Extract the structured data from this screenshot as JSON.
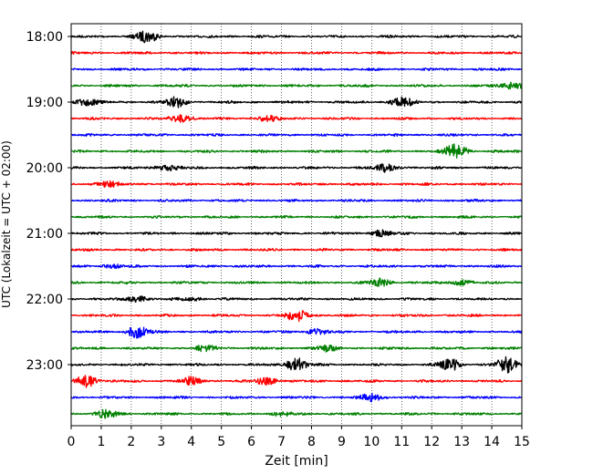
{
  "chart_data": {
    "type": "line",
    "title": "",
    "xlabel": "Zeit  [min]",
    "ylabel": "UTC (Lokalzeit = UTC + 02:00)",
    "xlim": [
      0,
      15
    ],
    "x_ticks": [
      "0",
      "1",
      "2",
      "3",
      "4",
      "5",
      "6",
      "7",
      "8",
      "9",
      "10",
      "11",
      "12",
      "13",
      "14",
      "15"
    ],
    "y_tick_labels": [
      "18:00",
      "19:00",
      "20:00",
      "21:00",
      "22:00",
      "23:00"
    ],
    "start_time": "18:00",
    "trace_interval_min": 15,
    "grid": "vertical-dotted",
    "colors": [
      "#000000",
      "#ff0000",
      "#0000ff",
      "#008000"
    ],
    "series": [
      {
        "start": "18:00",
        "color": "#000000",
        "bursts": [
          [
            2.5,
            6
          ]
        ]
      },
      {
        "start": "18:15",
        "color": "#ff0000",
        "bursts": []
      },
      {
        "start": "18:30",
        "color": "#0000ff",
        "bursts": []
      },
      {
        "start": "18:45",
        "color": "#008000",
        "bursts": [
          [
            14.7,
            4
          ]
        ]
      },
      {
        "start": "19:00",
        "color": "#000000",
        "bursts": [
          [
            0.5,
            4
          ],
          [
            3.5,
            5
          ],
          [
            11,
            5
          ]
        ]
      },
      {
        "start": "19:15",
        "color": "#ff0000",
        "bursts": [
          [
            3.7,
            4
          ],
          [
            6.5,
            3
          ]
        ]
      },
      {
        "start": "19:30",
        "color": "#0000ff",
        "bursts": []
      },
      {
        "start": "19:45",
        "color": "#008000",
        "bursts": [
          [
            12.8,
            8
          ]
        ]
      },
      {
        "start": "20:00",
        "color": "#000000",
        "bursts": [
          [
            3.2,
            3
          ],
          [
            10.5,
            4
          ]
        ]
      },
      {
        "start": "20:15",
        "color": "#ff0000",
        "bursts": [
          [
            1.2,
            3
          ]
        ]
      },
      {
        "start": "20:30",
        "color": "#0000ff",
        "bursts": []
      },
      {
        "start": "20:45",
        "color": "#008000",
        "bursts": []
      },
      {
        "start": "21:00",
        "color": "#000000",
        "bursts": [
          [
            10.3,
            3
          ]
        ]
      },
      {
        "start": "21:15",
        "color": "#ff0000",
        "bursts": []
      },
      {
        "start": "21:30",
        "color": "#0000ff",
        "bursts": [
          [
            1.4,
            2
          ]
        ]
      },
      {
        "start": "21:45",
        "color": "#008000",
        "bursts": [
          [
            10.3,
            4
          ],
          [
            13,
            3
          ]
        ]
      },
      {
        "start": "22:00",
        "color": "#000000",
        "bursts": [
          [
            2.2,
            3
          ],
          [
            4,
            2
          ]
        ]
      },
      {
        "start": "22:15",
        "color": "#ff0000",
        "bursts": [
          [
            7.5,
            7
          ]
        ]
      },
      {
        "start": "22:30",
        "color": "#0000ff",
        "bursts": [
          [
            2.2,
            6
          ],
          [
            8.2,
            3
          ]
        ]
      },
      {
        "start": "22:45",
        "color": "#008000",
        "bursts": [
          [
            4.5,
            3
          ],
          [
            8.5,
            3
          ]
        ]
      },
      {
        "start": "23:00",
        "color": "#000000",
        "bursts": [
          [
            7.5,
            7
          ],
          [
            14.5,
            8
          ],
          [
            12.6,
            6
          ]
        ]
      },
      {
        "start": "23:15",
        "color": "#ff0000",
        "bursts": [
          [
            0.5,
            7
          ],
          [
            4,
            4
          ],
          [
            6.5,
            4
          ]
        ]
      },
      {
        "start": "23:30",
        "color": "#0000ff",
        "bursts": [
          [
            10,
            4
          ]
        ]
      },
      {
        "start": "23:45",
        "color": "#008000",
        "bursts": [
          [
            1.2,
            4
          ],
          [
            7,
            2
          ]
        ]
      }
    ]
  }
}
